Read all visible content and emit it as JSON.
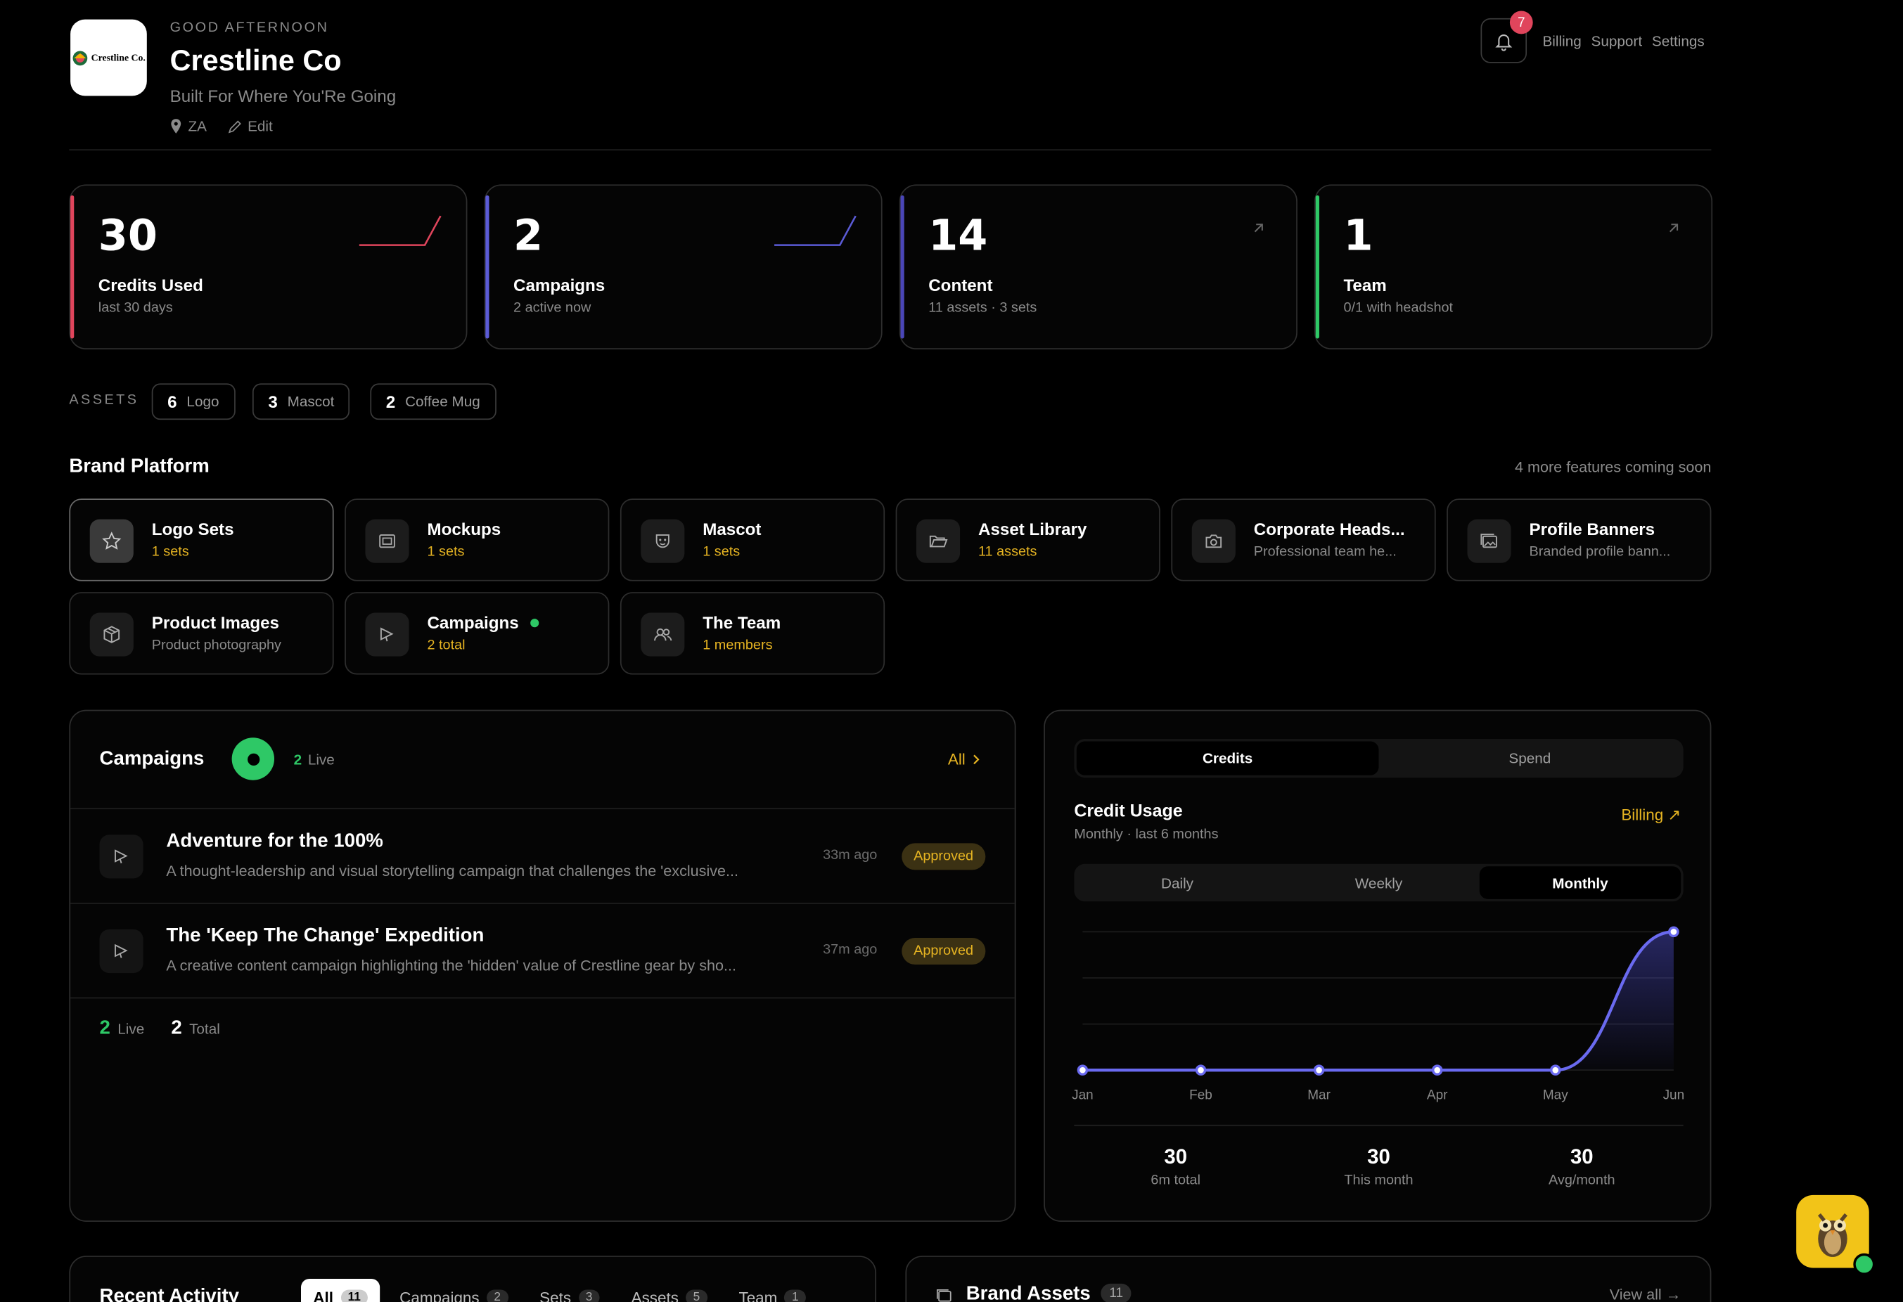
{
  "header": {
    "greeting": "GOOD AFTERNOON",
    "company": "Crestline Co",
    "tagline": "Built For Where You'Re Going",
    "location": "ZA",
    "edit_label": "Edit",
    "logo_text": "Crestline Co.",
    "notifications_count": "7",
    "nav": [
      "Billing",
      "Support",
      "Settings"
    ]
  },
  "stats": [
    {
      "value": "30",
      "label": "Credits Used",
      "sub": "last 30 days",
      "accent": "#e0455c"
    },
    {
      "value": "2",
      "label": "Campaigns",
      "sub": "2 active now",
      "accent": "#5b5bd6"
    },
    {
      "value": "14",
      "label": "Content",
      "sub": "11 assets · 3 sets",
      "accent": "#4a46b8"
    },
    {
      "value": "1",
      "label": "Team",
      "sub": "0/1 with headshot",
      "accent": "#2ec866"
    }
  ],
  "assets": {
    "label": "ASSETS",
    "items": [
      {
        "count": "6",
        "name": "Logo"
      },
      {
        "count": "3",
        "name": "Mascot"
      },
      {
        "count": "2",
        "name": "Coffee Mug"
      }
    ]
  },
  "platform": {
    "title": "Brand Platform",
    "coming_soon": "4 more features coming soon",
    "tiles": [
      {
        "title": "Logo Sets",
        "sub": "1 sets"
      },
      {
        "title": "Mockups",
        "sub": "1 sets"
      },
      {
        "title": "Mascot",
        "sub": "1 sets"
      },
      {
        "title": "Asset Library",
        "sub": "11 assets"
      },
      {
        "title": "Corporate Heads...",
        "sub": "Professional team he..."
      },
      {
        "title": "Profile Banners",
        "sub": "Branded profile bann..."
      },
      {
        "title": "Product Images",
        "sub": "Product photography"
      },
      {
        "title": "Campaigns",
        "sub": "2 total"
      },
      {
        "title": "The Team",
        "sub": "1 members"
      }
    ]
  },
  "campaigns": {
    "title": "Campaigns",
    "live_count": "2",
    "live_label": "Live",
    "all_label": "All",
    "items": [
      {
        "title": "Adventure for the 100%",
        "desc": "A thought-leadership and visual storytelling campaign that challenges the 'exclusive...",
        "time": "33m ago",
        "status": "Approved"
      },
      {
        "title": "The 'Keep The Change' Expedition",
        "desc": "A creative content campaign highlighting the 'hidden' value of Crestline gear by sho...",
        "time": "37m ago",
        "status": "Approved"
      }
    ],
    "footer": {
      "live_count": "2",
      "live_label": "Live",
      "total_count": "2",
      "total_label": "Total"
    }
  },
  "usage": {
    "tabs": [
      "Credits",
      "Spend"
    ],
    "title": "Credit Usage",
    "subtitle": "Monthly · last 6 months",
    "billing_label": "Billing ↗",
    "periods": [
      "Daily",
      "Weekly",
      "Monthly"
    ],
    "summary": [
      {
        "value": "30",
        "label": "6m total"
      },
      {
        "value": "30",
        "label": "This month"
      },
      {
        "value": "30",
        "label": "Avg/month"
      }
    ]
  },
  "chart_data": {
    "type": "area",
    "categories": [
      "Jan",
      "Feb",
      "Mar",
      "Apr",
      "May",
      "Jun"
    ],
    "series": [
      {
        "values": [
          0,
          0,
          0,
          0,
          0,
          30
        ]
      }
    ],
    "ylim": [
      0,
      30
    ],
    "grid": true
  },
  "activity": {
    "title": "Recent Activity",
    "tabs": [
      {
        "label": "All",
        "count": "11"
      },
      {
        "label": "Campaigns",
        "count": "2"
      },
      {
        "label": "Sets",
        "count": "3"
      },
      {
        "label": "Assets",
        "count": "5"
      },
      {
        "label": "Team",
        "count": "1"
      }
    ]
  },
  "brand_assets": {
    "title": "Brand Assets",
    "count": "11",
    "view_all": "View all →"
  }
}
